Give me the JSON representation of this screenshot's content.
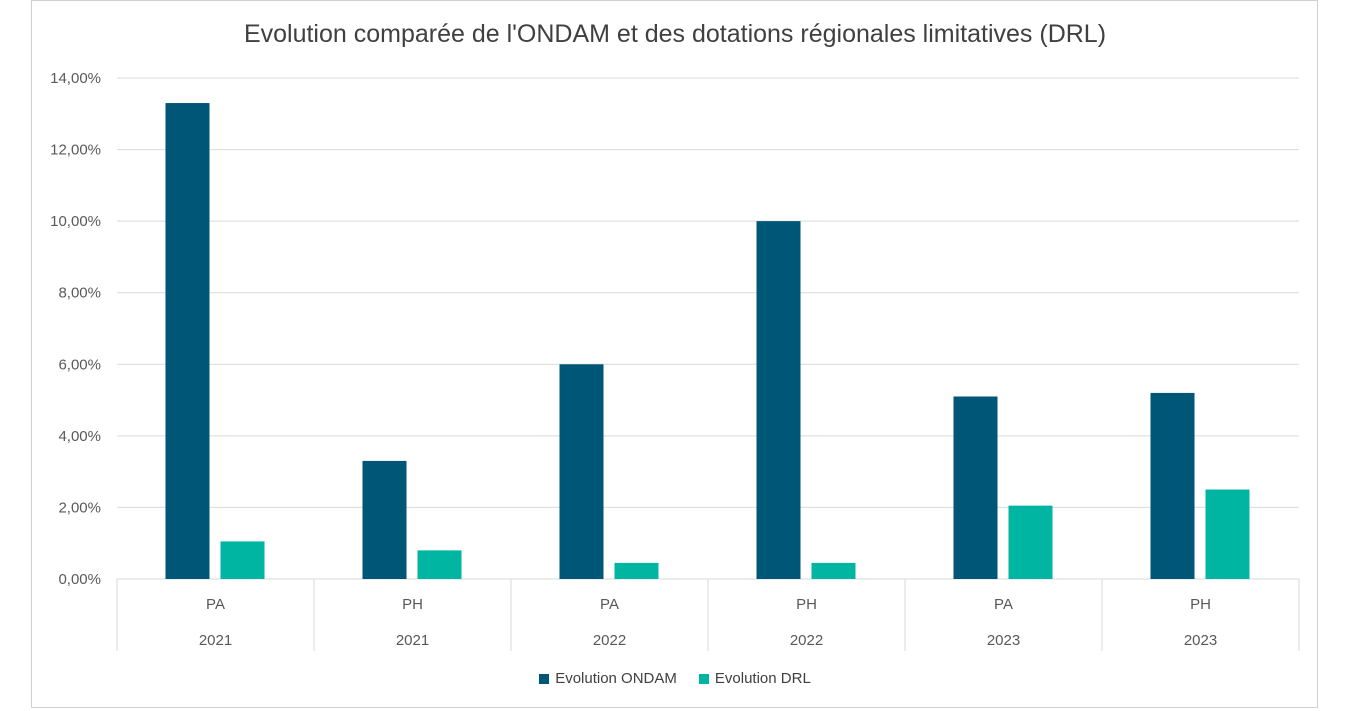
{
  "chart_data": {
    "type": "bar",
    "title": "Evolution comparée de l'ONDAM et des dotations régionales limitatives (DRL)",
    "categories": [
      {
        "label": "PA",
        "group": "2021"
      },
      {
        "label": "PH",
        "group": "2021"
      },
      {
        "label": "PA",
        "group": "2022"
      },
      {
        "label": "PH",
        "group": "2022"
      },
      {
        "label": "PA",
        "group": "2023"
      },
      {
        "label": "PH",
        "group": "2023"
      }
    ],
    "series": [
      {
        "name": "Evolution ONDAM",
        "color": "#005677",
        "values": [
          13.3,
          3.3,
          6.0,
          10.0,
          5.1,
          5.2
        ]
      },
      {
        "name": "Evolution DRL",
        "color": "#00B6A3",
        "values": [
          1.05,
          0.8,
          0.45,
          0.45,
          2.05,
          2.5
        ]
      }
    ],
    "ylim": [
      0,
      14
    ],
    "yticks": [
      "0,00%",
      "2,00%",
      "4,00%",
      "6,00%",
      "8,00%",
      "10,00%",
      "12,00%",
      "14,00%"
    ],
    "grid": true,
    "legend_position": "bottom"
  }
}
